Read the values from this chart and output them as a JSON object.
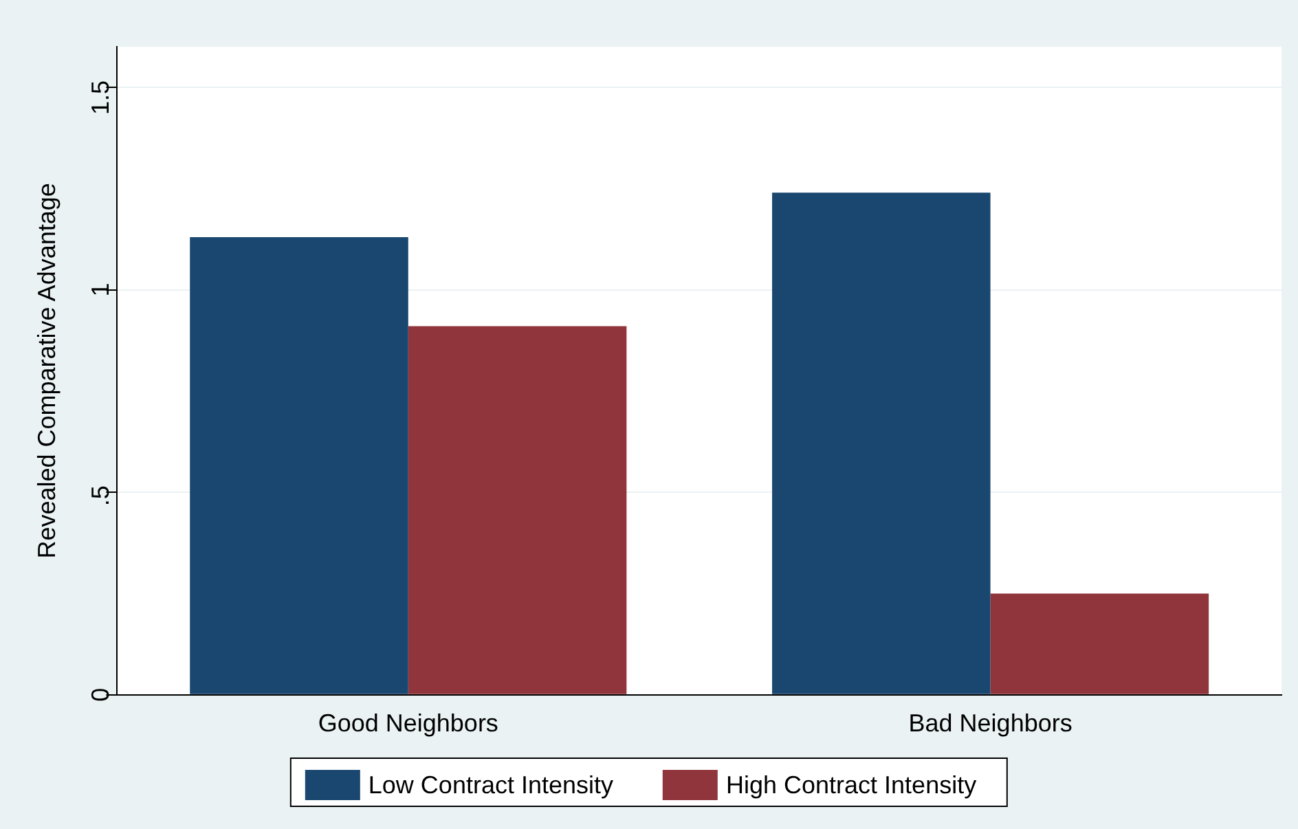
{
  "chart_data": {
    "type": "bar",
    "ylabel": "Revealed Comparative Advantage",
    "categories": [
      "Good Neighbors",
      "Bad Neighbors"
    ],
    "series": [
      {
        "name": "Low Contract Intensity",
        "color": "#1a476f",
        "values": [
          1.13,
          1.24
        ]
      },
      {
        "name": "High Contract Intensity",
        "color": "#90353b",
        "values": [
          0.91,
          0.25
        ]
      }
    ],
    "ylim": [
      0,
      1.6
    ],
    "yticks": [
      0,
      {
        "value": 0.5,
        "label": ".5"
      },
      1,
      {
        "value": 1.5,
        "label": "1.5"
      }
    ],
    "grid": "y",
    "legend": "bottom"
  }
}
